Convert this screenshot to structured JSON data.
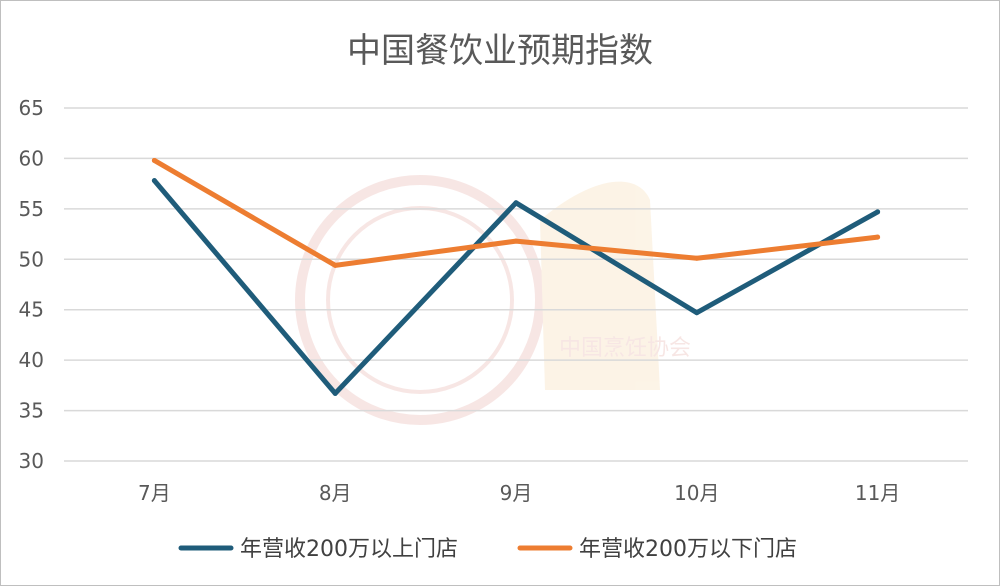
{
  "chart_data": {
    "type": "line",
    "title": "中国餐饮业预期指数",
    "categories": [
      "7月",
      "8月",
      "9月",
      "10月",
      "11月"
    ],
    "series": [
      {
        "name": "年营收200万以上门店",
        "color": "#1f5c7a",
        "values": [
          57.8,
          36.7,
          55.6,
          44.7,
          54.7
        ]
      },
      {
        "name": "年营收200万以下门店",
        "color": "#ed7d31",
        "values": [
          59.8,
          49.4,
          51.8,
          50.1,
          52.2
        ]
      }
    ],
    "ylim": [
      30,
      65
    ],
    "yticks": [
      65,
      60,
      55,
      50,
      45,
      40,
      35,
      30
    ],
    "grid": true,
    "legend_position": "bottom"
  },
  "watermark": {
    "text": "中国烹饪协会"
  }
}
